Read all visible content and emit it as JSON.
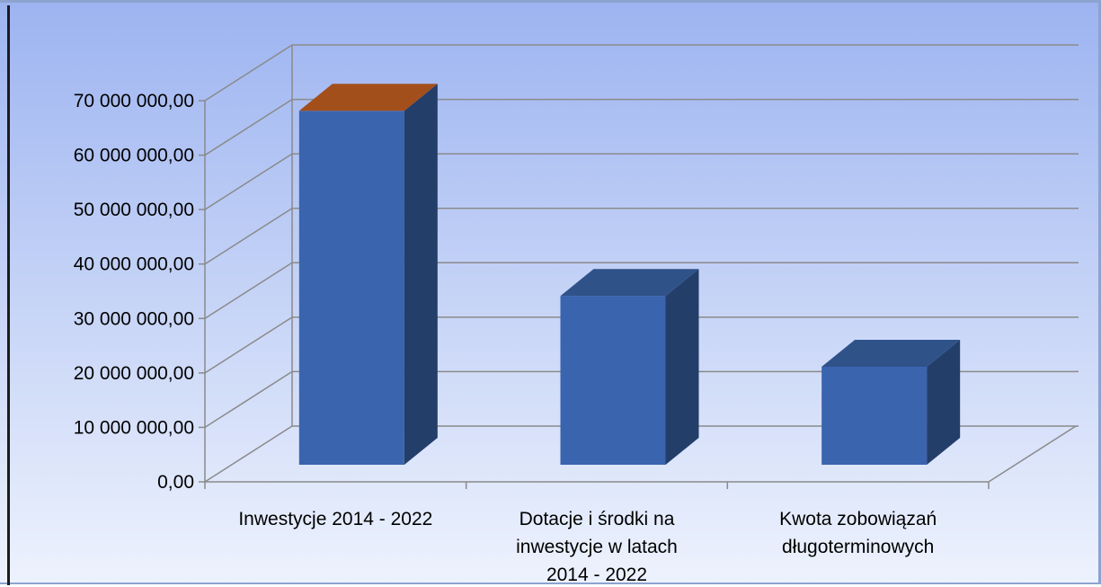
{
  "chart_data": {
    "type": "bar",
    "categories": [
      [
        "Inwestycje 2014 - 2022"
      ],
      [
        "Dotacje i środki na",
        "inwestycje w latach",
        "2014 - 2022"
      ],
      [
        "Kwota zobowiązań",
        "długoterminowych"
      ]
    ],
    "values": [
      65000000,
      31000000,
      18000000
    ],
    "ylim": [
      0,
      70000000
    ],
    "y_ticks": [
      "0,00",
      "10 000 000,00",
      "20 000 000,00",
      "30 000 000,00",
      "40 000 000,00",
      "50 000 000,00",
      "60 000 000,00",
      "70 000 000,00"
    ],
    "grid": true,
    "three_d": true,
    "colors": {
      "bar_front": "#3a64ae",
      "bar_side": "#243e6a",
      "bar_top": "#2f5289",
      "highlight_top": "#a34f1c",
      "grid": "#8a8a8a"
    },
    "highlight_top_index": 0
  }
}
